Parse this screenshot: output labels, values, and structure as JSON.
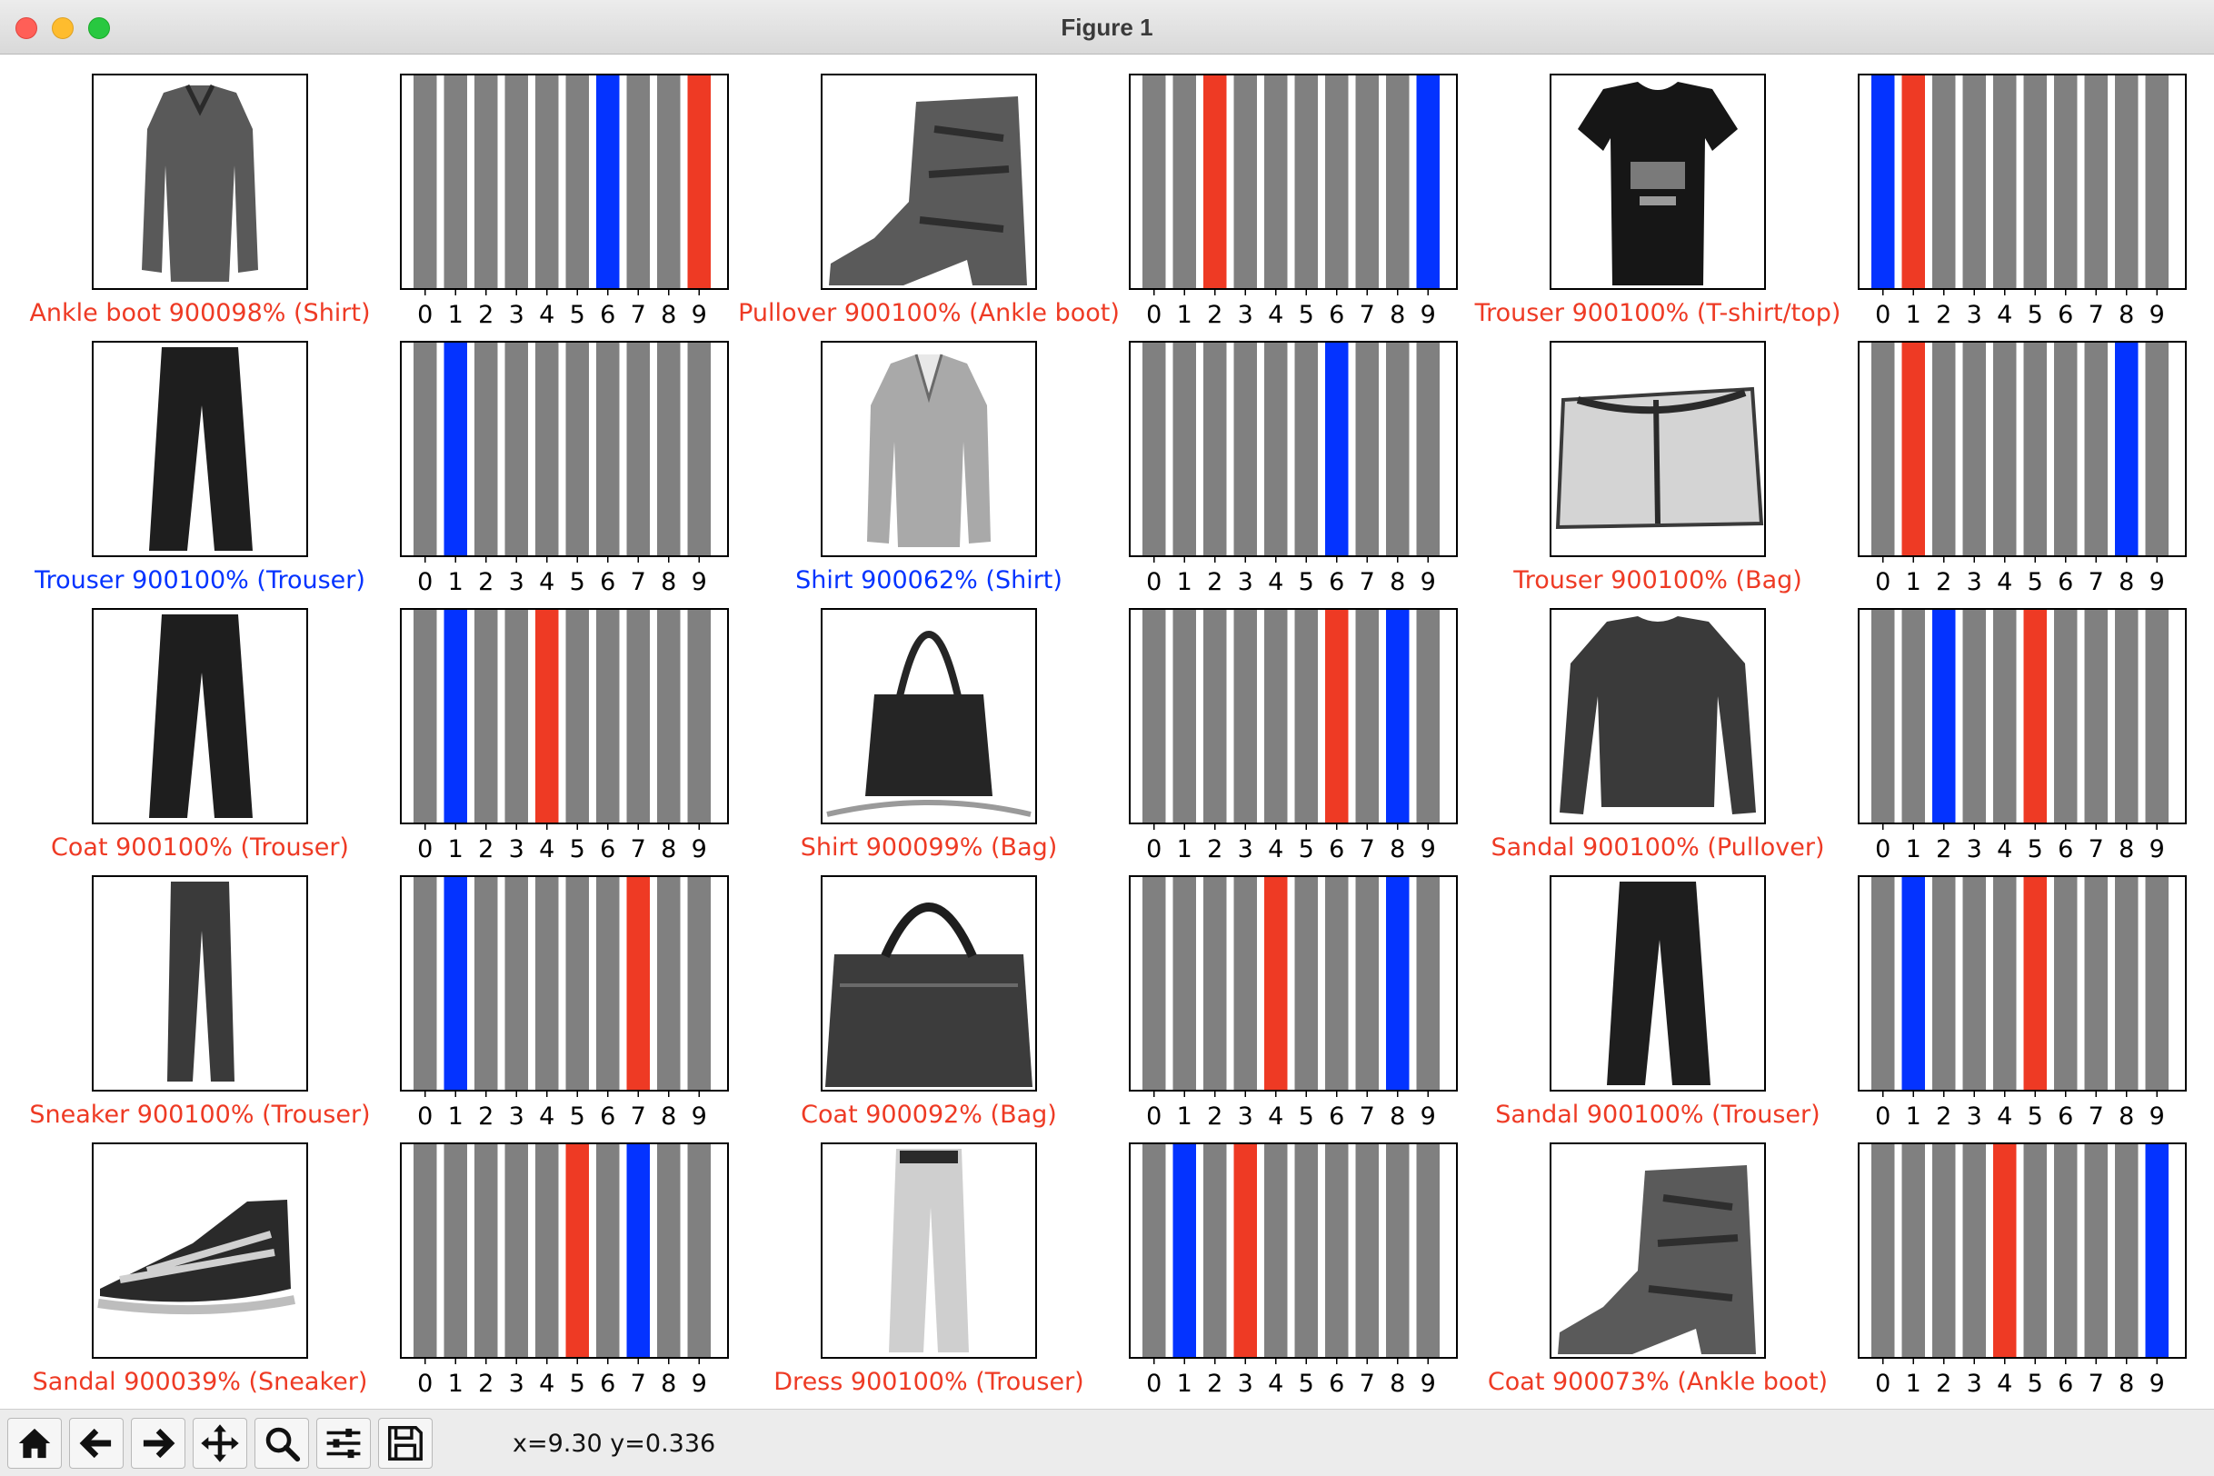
{
  "window": {
    "title": "Figure 1"
  },
  "toolbar": {
    "buttons": [
      "home-icon",
      "back-arrow-icon",
      "forward-arrow-icon",
      "pan-icon",
      "zoom-icon",
      "configure-subplots-icon",
      "save-icon"
    ],
    "coords": "x=9.30 y=0.336"
  },
  "colors": {
    "correct": "#0433ff",
    "wrong": "#ee3a24",
    "bar": "#808080"
  },
  "chart_data": [
    {
      "type": "bar",
      "image": "shirt",
      "label": "Ankle boot 900098% (Shirt)",
      "correct": false,
      "predicted": 9,
      "true_label": 6,
      "categories": [
        "0",
        "1",
        "2",
        "3",
        "4",
        "5",
        "6",
        "7",
        "8",
        "9"
      ],
      "values": [
        1,
        1,
        1,
        1,
        1,
        1,
        1,
        1,
        1,
        1
      ],
      "ylim": [
        0,
        1
      ]
    },
    {
      "type": "bar",
      "image": "ankle-boot",
      "label": "Pullover 900100% (Ankle boot)",
      "correct": false,
      "predicted": 2,
      "true_label": 9,
      "categories": [
        "0",
        "1",
        "2",
        "3",
        "4",
        "5",
        "6",
        "7",
        "8",
        "9"
      ],
      "values": [
        1,
        1,
        1,
        1,
        1,
        1,
        1,
        1,
        1,
        1
      ],
      "ylim": [
        0,
        1
      ]
    },
    {
      "type": "bar",
      "image": "tshirt",
      "label": "Trouser 900100% (T-shirt/top)",
      "correct": false,
      "predicted": 1,
      "true_label": 0,
      "categories": [
        "0",
        "1",
        "2",
        "3",
        "4",
        "5",
        "6",
        "7",
        "8",
        "9"
      ],
      "values": [
        1,
        1,
        1,
        1,
        1,
        1,
        1,
        1,
        1,
        1
      ],
      "ylim": [
        0,
        1
      ]
    },
    {
      "type": "bar",
      "image": "trouser",
      "label": "Trouser 900100% (Trouser)",
      "correct": true,
      "predicted": 1,
      "true_label": 1,
      "categories": [
        "0",
        "1",
        "2",
        "3",
        "4",
        "5",
        "6",
        "7",
        "8",
        "9"
      ],
      "values": [
        1,
        1,
        1,
        1,
        1,
        1,
        1,
        1,
        1,
        1
      ],
      "ylim": [
        0,
        1
      ]
    },
    {
      "type": "bar",
      "image": "shirt-light",
      "label": "Shirt 900062% (Shirt)",
      "correct": true,
      "predicted": 6,
      "true_label": 6,
      "categories": [
        "0",
        "1",
        "2",
        "3",
        "4",
        "5",
        "6",
        "7",
        "8",
        "9"
      ],
      "values": [
        1,
        1,
        1,
        1,
        1,
        1,
        1,
        1,
        1,
        1
      ],
      "ylim": [
        0,
        1
      ]
    },
    {
      "type": "bar",
      "image": "bag-light",
      "label": "Trouser 900100% (Bag)",
      "correct": false,
      "predicted": 1,
      "true_label": 8,
      "categories": [
        "0",
        "1",
        "2",
        "3",
        "4",
        "5",
        "6",
        "7",
        "8",
        "9"
      ],
      "values": [
        1,
        1,
        1,
        1,
        1,
        1,
        1,
        1,
        1,
        1
      ],
      "ylim": [
        0,
        1
      ]
    },
    {
      "type": "bar",
      "image": "trouser",
      "label": "Coat 900100% (Trouser)",
      "correct": false,
      "predicted": 4,
      "true_label": 1,
      "categories": [
        "0",
        "1",
        "2",
        "3",
        "4",
        "5",
        "6",
        "7",
        "8",
        "9"
      ],
      "values": [
        1,
        1,
        1,
        1,
        1,
        1,
        1,
        1,
        1,
        1
      ],
      "ylim": [
        0,
        1
      ]
    },
    {
      "type": "bar",
      "image": "tote-bag",
      "label": "Shirt 900099% (Bag)",
      "correct": false,
      "predicted": 6,
      "true_label": 8,
      "categories": [
        "0",
        "1",
        "2",
        "3",
        "4",
        "5",
        "6",
        "7",
        "8",
        "9"
      ],
      "values": [
        1,
        1,
        1,
        1,
        1,
        1,
        1,
        1,
        1,
        1
      ],
      "ylim": [
        0,
        1
      ]
    },
    {
      "type": "bar",
      "image": "pullover",
      "label": "Sandal 900100% (Pullover)",
      "correct": false,
      "predicted": 5,
      "true_label": 2,
      "categories": [
        "0",
        "1",
        "2",
        "3",
        "4",
        "5",
        "6",
        "7",
        "8",
        "9"
      ],
      "values": [
        1,
        1,
        1,
        1,
        1,
        1,
        1,
        1,
        1,
        1
      ],
      "ylim": [
        0,
        1
      ]
    },
    {
      "type": "bar",
      "image": "trouser-thin",
      "label": "Sneaker 900100% (Trouser)",
      "correct": false,
      "predicted": 7,
      "true_label": 1,
      "categories": [
        "0",
        "1",
        "2",
        "3",
        "4",
        "5",
        "6",
        "7",
        "8",
        "9"
      ],
      "values": [
        1,
        1,
        1,
        1,
        1,
        1,
        1,
        1,
        1,
        1
      ],
      "ylim": [
        0,
        1
      ]
    },
    {
      "type": "bar",
      "image": "handbag",
      "label": "Coat 900092% (Bag)",
      "correct": false,
      "predicted": 4,
      "true_label": 8,
      "categories": [
        "0",
        "1",
        "2",
        "3",
        "4",
        "5",
        "6",
        "7",
        "8",
        "9"
      ],
      "values": [
        1,
        1,
        1,
        1,
        1,
        1,
        1,
        1,
        1,
        1
      ],
      "ylim": [
        0,
        1
      ]
    },
    {
      "type": "bar",
      "image": "trouser",
      "label": "Sandal 900100% (Trouser)",
      "correct": false,
      "predicted": 5,
      "true_label": 1,
      "categories": [
        "0",
        "1",
        "2",
        "3",
        "4",
        "5",
        "6",
        "7",
        "8",
        "9"
      ],
      "values": [
        1,
        1,
        1,
        1,
        1,
        1,
        1,
        1,
        1,
        1
      ],
      "ylim": [
        0,
        1
      ]
    },
    {
      "type": "bar",
      "image": "sneaker",
      "label": "Sandal 900039% (Sneaker)",
      "correct": false,
      "predicted": 5,
      "true_label": 7,
      "categories": [
        "0",
        "1",
        "2",
        "3",
        "4",
        "5",
        "6",
        "7",
        "8",
        "9"
      ],
      "values": [
        1,
        1,
        1,
        1,
        1,
        1,
        1,
        1,
        1,
        1
      ],
      "ylim": [
        0,
        1
      ]
    },
    {
      "type": "bar",
      "image": "trouser-light",
      "label": "Dress 900100% (Trouser)",
      "correct": false,
      "predicted": 3,
      "true_label": 1,
      "categories": [
        "0",
        "1",
        "2",
        "3",
        "4",
        "5",
        "6",
        "7",
        "8",
        "9"
      ],
      "values": [
        1,
        1,
        1,
        1,
        1,
        1,
        1,
        1,
        1,
        1
      ],
      "ylim": [
        0,
        1
      ]
    },
    {
      "type": "bar",
      "image": "ankle-boot",
      "label": "Coat 900073% (Ankle boot)",
      "correct": false,
      "predicted": 4,
      "true_label": 9,
      "categories": [
        "0",
        "1",
        "2",
        "3",
        "4",
        "5",
        "6",
        "7",
        "8",
        "9"
      ],
      "values": [
        1,
        1,
        1,
        1,
        1,
        1,
        1,
        1,
        1,
        1
      ],
      "ylim": [
        0,
        1
      ]
    }
  ]
}
